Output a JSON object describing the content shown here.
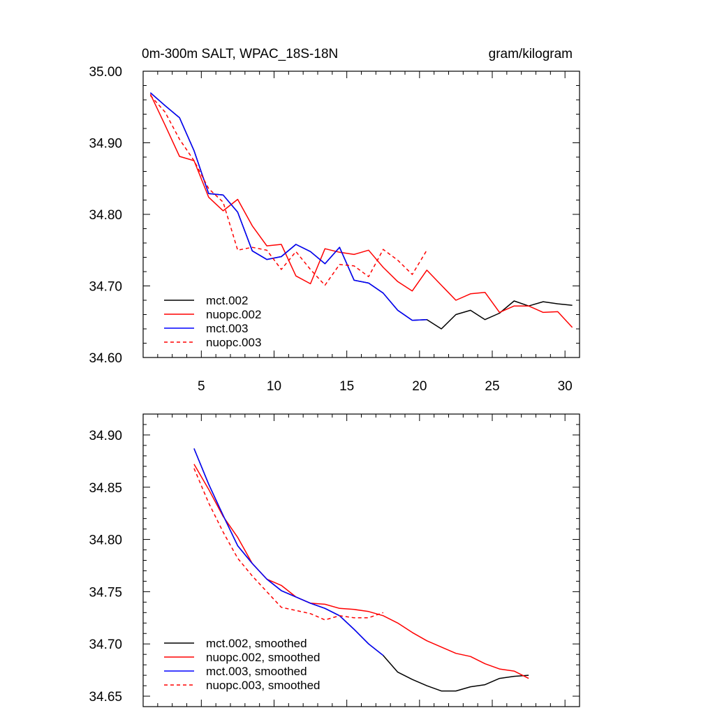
{
  "chart_data": [
    {
      "type": "line",
      "title": "0m-300m SALT, WPAC_18S-18N",
      "units": "gram/kilogram",
      "xlim": [
        1,
        31
      ],
      "ylim": [
        34.6,
        35.0
      ],
      "xticks": [
        5,
        10,
        15,
        20,
        25,
        30
      ],
      "xtick_labels": [
        "5",
        "10",
        "15",
        "20",
        "25",
        "30"
      ],
      "yticks": [
        34.6,
        34.7,
        34.8,
        34.9,
        35.0
      ],
      "ytick_labels": [
        "34.60",
        "34.70",
        "34.80",
        "34.90",
        "35.00"
      ],
      "grid": false,
      "legend": "bottom-left",
      "series": [
        {
          "name": "mct.002",
          "color": "#000000",
          "dash": "solid",
          "x": [
            1.5,
            2.5,
            3.5,
            4.5,
            5.5,
            6.5,
            7.5,
            8.5,
            9.5,
            10.5,
            11.5,
            12.5,
            13.5,
            14.5,
            15.5,
            16.5,
            17.5,
            18.5,
            19.5,
            20.5,
            21.5,
            22.5,
            23.5,
            24.5,
            25.5,
            26.5,
            27.5,
            28.5,
            29.5,
            30.5
          ],
          "y": [
            34.97,
            34.952,
            34.935,
            34.889,
            34.829,
            34.827,
            34.803,
            34.749,
            34.737,
            34.741,
            34.758,
            34.748,
            34.731,
            34.754,
            34.708,
            34.704,
            34.69,
            34.666,
            34.652,
            34.653,
            34.64,
            34.66,
            34.666,
            34.653,
            34.662,
            34.679,
            34.672,
            34.678,
            34.675,
            34.673
          ]
        },
        {
          "name": "nuopc.002",
          "color": "#ff0000",
          "dash": "solid",
          "x": [
            1.5,
            2.5,
            3.5,
            4.5,
            5.5,
            6.5,
            7.5,
            8.5,
            9.5,
            10.5,
            11.5,
            12.5,
            13.5,
            14.5,
            15.5,
            16.5,
            17.5,
            18.5,
            19.5,
            20.5,
            21.5,
            22.5,
            23.5,
            24.5,
            25.5,
            26.5,
            27.5,
            28.5,
            29.5,
            30.5
          ],
          "y": [
            34.968,
            34.925,
            34.881,
            34.875,
            34.824,
            34.805,
            34.821,
            34.784,
            34.756,
            34.758,
            34.714,
            34.703,
            34.752,
            34.747,
            34.744,
            34.75,
            34.726,
            34.706,
            34.693,
            34.722,
            34.701,
            34.68,
            34.689,
            34.691,
            34.663,
            34.672,
            34.672,
            34.663,
            34.664,
            34.642
          ]
        },
        {
          "name": "mct.003",
          "color": "#0000ff",
          "dash": "solid",
          "x": [
            1.5,
            2.5,
            3.5,
            4.5,
            5.5,
            6.5,
            7.5,
            8.5,
            9.5,
            10.5,
            11.5,
            12.5,
            13.5,
            14.5,
            15.5,
            16.5,
            17.5,
            18.5,
            19.5,
            20.5
          ],
          "y": [
            34.97,
            34.952,
            34.935,
            34.889,
            34.829,
            34.827,
            34.803,
            34.749,
            34.737,
            34.741,
            34.758,
            34.748,
            34.731,
            34.754,
            34.708,
            34.704,
            34.69,
            34.666,
            34.652,
            34.653
          ]
        },
        {
          "name": "nuopc.003",
          "color": "#ff0000",
          "dash": "dashed",
          "x": [
            1.5,
            2.5,
            3.5,
            4.5,
            5.5,
            6.5,
            7.5,
            8.5,
            9.5,
            10.5,
            11.5,
            12.5,
            13.5,
            14.5,
            15.5,
            16.5,
            17.5,
            18.5,
            19.5,
            20.5
          ],
          "y": [
            34.966,
            34.943,
            34.905,
            34.875,
            34.836,
            34.817,
            34.75,
            34.754,
            34.75,
            34.723,
            34.748,
            34.723,
            34.701,
            34.73,
            34.728,
            34.713,
            34.751,
            34.736,
            34.716,
            34.75
          ]
        }
      ]
    },
    {
      "type": "line",
      "xlim": [
        1,
        31
      ],
      "ylim": [
        34.64,
        34.92
      ],
      "xticks": [
        5,
        10,
        15,
        20,
        25,
        30
      ],
      "yticks": [
        34.65,
        34.7,
        34.75,
        34.8,
        34.85,
        34.9
      ],
      "ytick_labels": [
        "34.65",
        "34.70",
        "34.75",
        "34.80",
        "34.85",
        "34.90"
      ],
      "grid": false,
      "legend": "bottom-left",
      "series": [
        {
          "name": "mct.002, smoothed",
          "color": "#000000",
          "dash": "solid",
          "x": [
            4.5,
            5.5,
            6.5,
            7.5,
            8.5,
            9.5,
            10.5,
            11.5,
            12.5,
            13.5,
            14.5,
            15.5,
            16.5,
            17.5,
            18.5,
            19.5,
            20.5,
            21.5,
            22.5,
            23.5,
            24.5,
            25.5,
            26.5,
            27.5
          ],
          "y": [
            34.887,
            34.853,
            34.823,
            34.794,
            34.777,
            34.762,
            34.751,
            34.745,
            34.739,
            34.734,
            34.727,
            34.714,
            34.7,
            34.689,
            34.673,
            34.666,
            34.66,
            34.655,
            34.655,
            34.659,
            34.661,
            34.667,
            34.669,
            34.67
          ]
        },
        {
          "name": "nuopc.002, smoothed",
          "color": "#ff0000",
          "dash": "solid",
          "x": [
            4.5,
            5.5,
            6.5,
            7.5,
            8.5,
            9.5,
            10.5,
            11.5,
            12.5,
            13.5,
            14.5,
            15.5,
            16.5,
            17.5,
            18.5,
            19.5,
            20.5,
            21.5,
            22.5,
            23.5,
            24.5,
            25.5,
            26.5,
            27.5
          ],
          "y": [
            34.872,
            34.848,
            34.822,
            34.802,
            34.777,
            34.762,
            34.756,
            34.745,
            34.739,
            34.738,
            34.734,
            34.733,
            34.731,
            34.727,
            34.72,
            34.711,
            34.703,
            34.697,
            34.691,
            34.688,
            34.681,
            34.676,
            34.674,
            34.667
          ]
        },
        {
          "name": "mct.003, smoothed",
          "color": "#0000ff",
          "dash": "solid",
          "x": [
            4.5,
            5.5,
            6.5,
            7.5,
            8.5,
            9.5,
            10.5,
            11.5,
            12.5,
            13.5,
            14.5,
            15.5,
            16.5,
            17.5
          ],
          "y": [
            34.887,
            34.853,
            34.823,
            34.794,
            34.777,
            34.762,
            34.751,
            34.745,
            34.739,
            34.734,
            34.727,
            34.714,
            34.7,
            34.689
          ]
        },
        {
          "name": "nuopc.003, smoothed",
          "color": "#ff0000",
          "dash": "dashed",
          "x": [
            4.5,
            5.5,
            6.5,
            7.5,
            8.5,
            9.5,
            10.5,
            11.5,
            12.5,
            13.5,
            14.5,
            15.5,
            16.5,
            17.5
          ],
          "y": [
            34.868,
            34.835,
            34.807,
            34.782,
            34.765,
            34.75,
            34.735,
            34.732,
            34.729,
            34.723,
            34.727,
            34.725,
            34.725,
            34.73
          ]
        }
      ]
    }
  ]
}
